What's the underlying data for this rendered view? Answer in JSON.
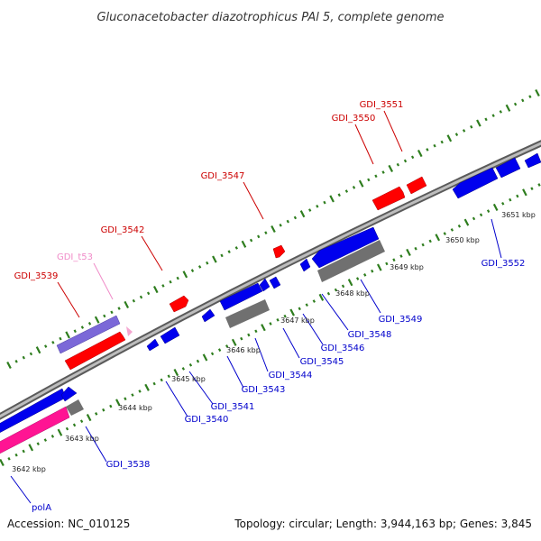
{
  "title": "Gluconacetobacter diazotrophicus PAl 5, complete genome",
  "footer": {
    "accession": "Accession: NC_010125",
    "summary": "Topology: circular; Length: 3,944,163 bp; Genes: 3,845"
  },
  "colors": {
    "backbone": "#8c8c8c",
    "ticks": "#2e7d1e",
    "forward_label": "#cc0000",
    "reverse_label": "#0000cc",
    "trna_label": "#f08cc8"
  },
  "kbp_labels": [
    "3642 kbp",
    "3643 kbp",
    "3644 kbp",
    "3645 kbp",
    "3646 kbp",
    "3647 kbp",
    "3648 kbp",
    "3649 kbp",
    "3650 kbp",
    "3651 kbp"
  ],
  "forward_genes": [
    {
      "name": "GDI_3539",
      "color": "#ff0000"
    },
    {
      "name": "GDI_t53",
      "color": "#f4a6d0"
    },
    {
      "name": "GDI_3542",
      "color": "#ff0000"
    },
    {
      "name": "GDI_3547",
      "color": "#ff0000"
    },
    {
      "name": "GDI_3550",
      "color": "#ff0000"
    },
    {
      "name": "GDI_3551",
      "color": "#ff0000"
    }
  ],
  "reverse_genes": [
    {
      "name": "polA",
      "color": "#0000ee"
    },
    {
      "name": "GDI_3538",
      "color": "#0000ee"
    },
    {
      "name": "GDI_3540",
      "color": "#0000ee"
    },
    {
      "name": "GDI_3541",
      "color": "#0000ee"
    },
    {
      "name": "GDI_3543",
      "color": "#0000ee"
    },
    {
      "name": "GDI_3544",
      "color": "#0000ee"
    },
    {
      "name": "GDI_3545",
      "color": "#0000ee"
    },
    {
      "name": "GDI_3546",
      "color": "#0000ee"
    },
    {
      "name": "GDI_3548",
      "color": "#0000ee"
    },
    {
      "name": "GDI_3549",
      "color": "#0000ee"
    },
    {
      "name": "GDI_3552",
      "color": "#0000ee"
    }
  ],
  "feature_colors": {
    "forward_gene": "#ff0000",
    "reverse_gene": "#0000ee",
    "forward_cds": "#7b68d8",
    "reverse_cds": "#707070",
    "trna": "#f4a6d0",
    "pola_cds": "#ff1493"
  }
}
